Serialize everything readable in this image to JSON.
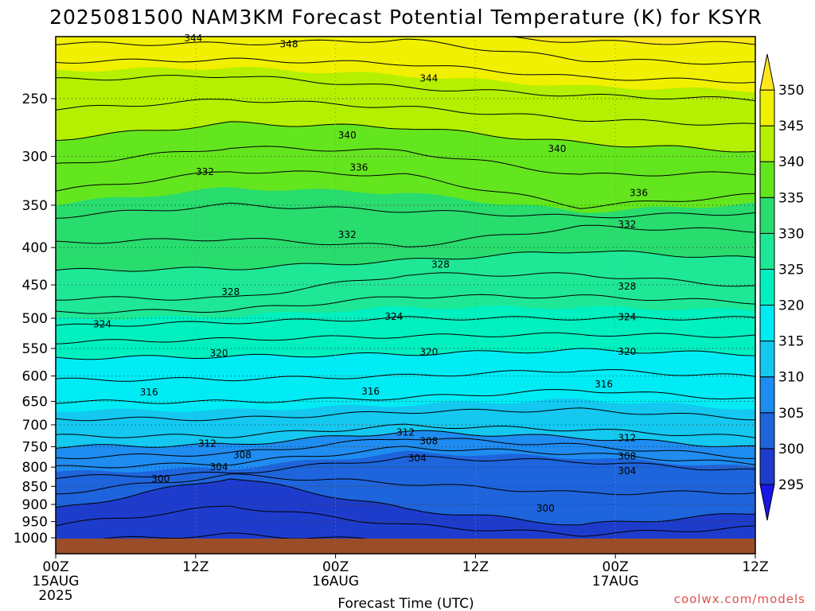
{
  "chart_data": {
    "type": "contour",
    "title": "2025081500 NAM3KM Forecast Potential Temperature (K) for KSYR",
    "xlabel": "Forecast Time (UTC)",
    "ylabel": "",
    "x_range_hours": [
      0,
      60
    ],
    "y_range_hPa": [
      1000,
      200
    ],
    "y_scale": "log",
    "x_ticks": [
      {
        "hour": 0,
        "label": "00Z",
        "sub": "15AUG",
        "sub2": "2025"
      },
      {
        "hour": 12,
        "label": "12Z",
        "sub": "",
        "sub2": ""
      },
      {
        "hour": 24,
        "label": "00Z",
        "sub": "16AUG",
        "sub2": ""
      },
      {
        "hour": 36,
        "label": "12Z",
        "sub": "",
        "sub2": ""
      },
      {
        "hour": 48,
        "label": "00Z",
        "sub": "17AUG",
        "sub2": ""
      },
      {
        "hour": 60,
        "label": "12Z",
        "sub": "",
        "sub2": ""
      }
    ],
    "y_ticks": [
      250,
      300,
      350,
      400,
      450,
      500,
      550,
      600,
      650,
      700,
      750,
      800,
      850,
      900,
      950,
      1000
    ],
    "grid": true,
    "colorbar": {
      "labels": [
        "295",
        "300",
        "305",
        "310",
        "315",
        "320",
        "325",
        "330",
        "335",
        "340",
        "345",
        "350"
      ],
      "colors": [
        "#1a16e6",
        "#1e3ccc",
        "#1e64dc",
        "#1e8cf0",
        "#14c8f0",
        "#00ecf4",
        "#00f0c0",
        "#1ee896",
        "#28dc6e",
        "#64e61e",
        "#b4f000",
        "#f0f000",
        "#ffe61e"
      ]
    },
    "contour_labels": [
      {
        "text": "344",
        "hour": 11.8,
        "hPa": 206
      },
      {
        "text": "348",
        "hour": 20,
        "hPa": 210
      },
      {
        "text": "344",
        "hour": 32,
        "hPa": 234
      },
      {
        "text": "340",
        "hour": 25,
        "hPa": 280
      },
      {
        "text": "340",
        "hour": 43,
        "hPa": 292
      },
      {
        "text": "336",
        "hour": 26,
        "hPa": 310
      },
      {
        "text": "336",
        "hour": 50,
        "hPa": 336
      },
      {
        "text": "332",
        "hour": 12.8,
        "hPa": 314
      },
      {
        "text": "332",
        "hour": 25,
        "hPa": 383
      },
      {
        "text": "332",
        "hour": 49,
        "hPa": 371
      },
      {
        "text": "328",
        "hour": 33,
        "hPa": 421
      },
      {
        "text": "328",
        "hour": 15,
        "hPa": 459
      },
      {
        "text": "328",
        "hour": 49,
        "hPa": 451
      },
      {
        "text": "324",
        "hour": 4,
        "hPa": 508
      },
      {
        "text": "324",
        "hour": 29,
        "hPa": 496
      },
      {
        "text": "324",
        "hour": 49,
        "hPa": 497
      },
      {
        "text": "320",
        "hour": 14,
        "hPa": 557
      },
      {
        "text": "320",
        "hour": 32,
        "hPa": 555
      },
      {
        "text": "320",
        "hour": 49,
        "hPa": 554
      },
      {
        "text": "316",
        "hour": 8,
        "hPa": 630
      },
      {
        "text": "316",
        "hour": 27,
        "hPa": 628
      },
      {
        "text": "316",
        "hour": 47,
        "hPa": 614
      },
      {
        "text": "312",
        "hour": 13,
        "hPa": 741
      },
      {
        "text": "312",
        "hour": 30,
        "hPa": 715
      },
      {
        "text": "312",
        "hour": 49,
        "hPa": 728
      },
      {
        "text": "308",
        "hour": 32,
        "hPa": 735
      },
      {
        "text": "308",
        "hour": 16,
        "hPa": 768
      },
      {
        "text": "308",
        "hour": 49,
        "hPa": 771
      },
      {
        "text": "304",
        "hour": 14,
        "hPa": 798
      },
      {
        "text": "304",
        "hour": 31,
        "hPa": 776
      },
      {
        "text": "304",
        "hour": 49,
        "hPa": 808
      },
      {
        "text": "300",
        "hour": 9,
        "hPa": 828
      },
      {
        "text": "300",
        "hour": 42,
        "hPa": 909
      }
    ],
    "credit": "coolwx.com/models"
  }
}
